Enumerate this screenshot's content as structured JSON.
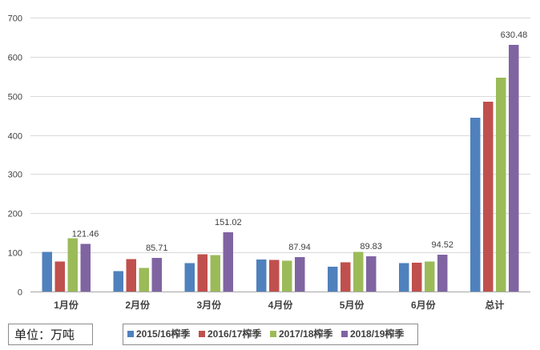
{
  "chart_data": {
    "type": "bar",
    "categories": [
      "1月份",
      "2月份",
      "3月份",
      "4月份",
      "5月份",
      "6月份",
      "总计"
    ],
    "series": [
      {
        "name": "2015/16榨季",
        "color": "#4f81bd",
        "values": [
          101,
          52,
          73,
          82,
          63,
          73,
          444
        ],
        "show_data_labels": false
      },
      {
        "name": "2016/17榨季",
        "color": "#c0504d",
        "values": [
          77,
          83,
          95,
          81,
          75,
          74,
          485
        ],
        "show_data_labels": false
      },
      {
        "name": "2017/18榨季",
        "color": "#9bbb59",
        "values": [
          136,
          60,
          93,
          79,
          101,
          77,
          546
        ],
        "show_data_labels": false
      },
      {
        "name": "2018/19榨季",
        "color": "#8064a2",
        "values": [
          121.46,
          85.71,
          151.02,
          87.94,
          89.83,
          94.52,
          630.48
        ],
        "show_data_labels": true
      }
    ],
    "ylim": [
      0,
      700
    ],
    "yticks": [
      0,
      100,
      200,
      300,
      400,
      500,
      600,
      700
    ],
    "grid": true,
    "legend": "bottom",
    "unit_note": "单位：万吨"
  }
}
